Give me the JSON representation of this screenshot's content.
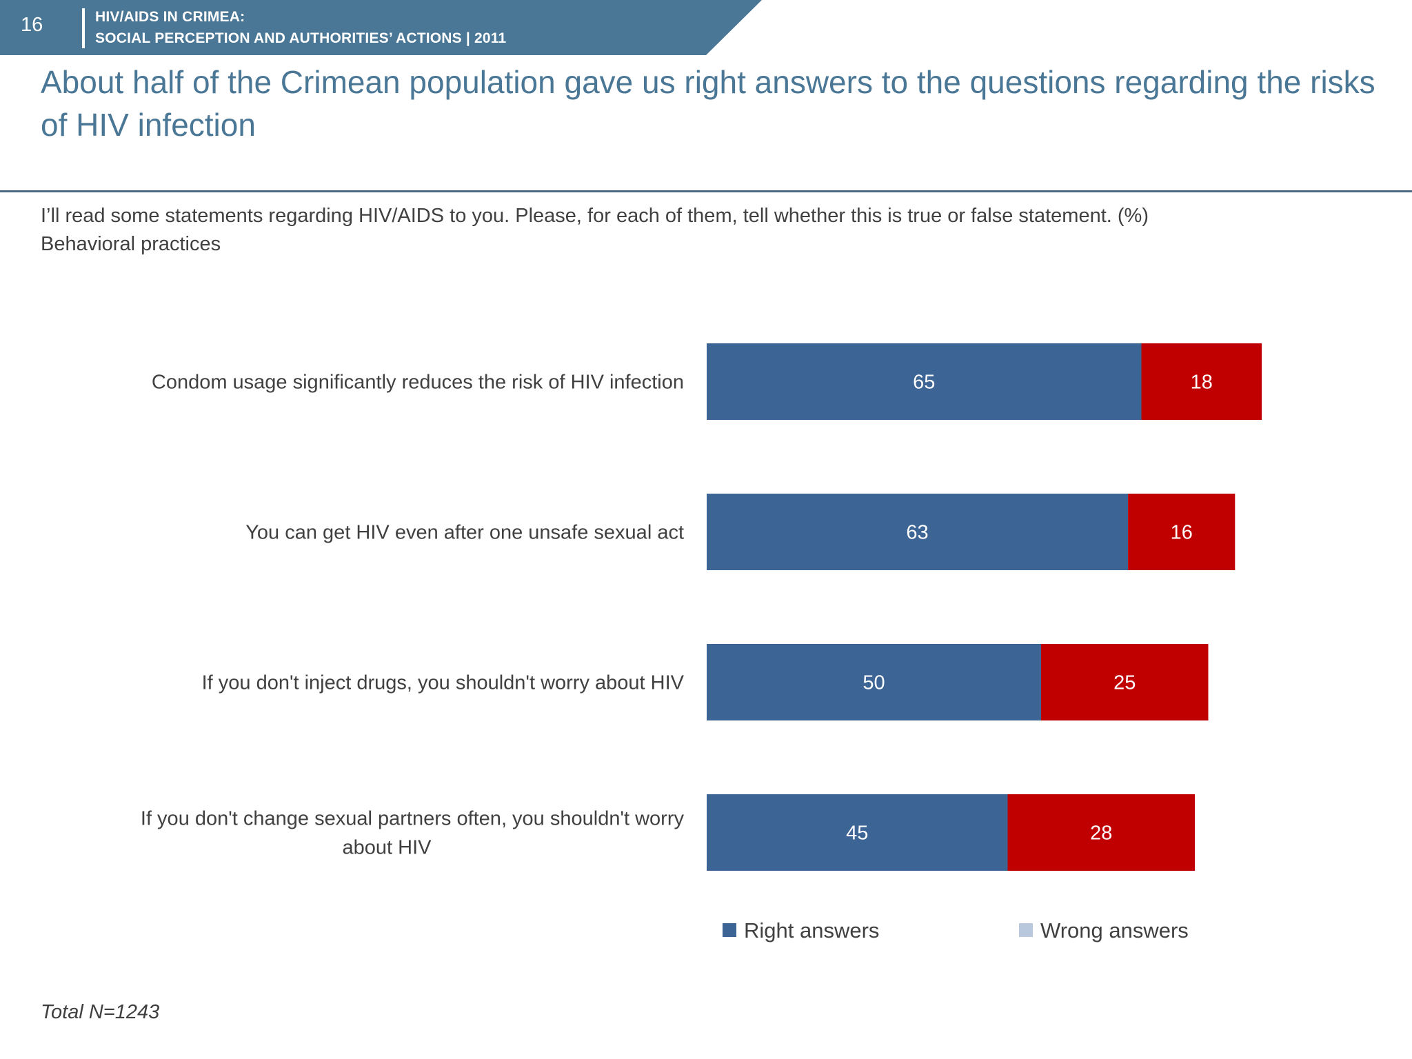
{
  "header": {
    "page_number": "16",
    "line1": "HIV/AIDS IN CRIMEA:",
    "line2": "SOCIAL PERCEPTION AND AUTHORITIES’ ACTIONS  |  2011",
    "banner_color": "#4a7796"
  },
  "title": "About half of the Crimean population gave us right answers to the questions regarding the risks of HIV infection",
  "question": "I’ll read some statements regarding HIV/AIDS to you. Please, for each of them, tell whether this is true or false statement. (%)",
  "subtitle": "Behavioral practices",
  "footnote": "Total N=1243",
  "chart_data": {
    "type": "bar",
    "orientation": "horizontal",
    "stacked": true,
    "categories": [
      "Condom usage significantly reduces the risk of HIV infection",
      "You can get HIV even after one unsafe sexual act",
      "If you don't inject drugs, you shouldn't worry about HIV",
      "If you don't change sexual partners often, you shouldn't worry about HIV"
    ],
    "series": [
      {
        "name": "Right answers",
        "values": [
          65,
          63,
          50,
          45
        ],
        "color": "#3c6494",
        "legend_color": "#3c6494"
      },
      {
        "name": "Wrong answers",
        "values": [
          18,
          16,
          25,
          28
        ],
        "color": "#c00000",
        "legend_color": "#b9c8dc"
      }
    ],
    "xlim": [
      0,
      100
    ],
    "title": "",
    "xlabel": "",
    "ylabel": "",
    "grid": false,
    "legend_position": "bottom"
  }
}
